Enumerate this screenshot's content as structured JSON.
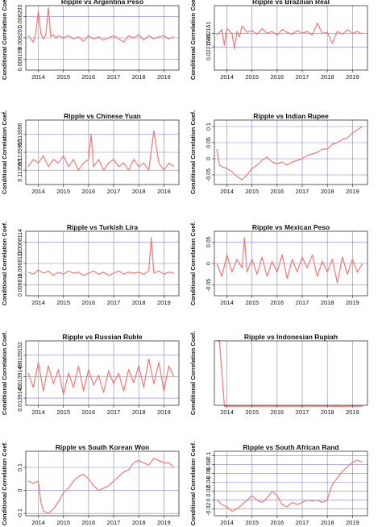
{
  "figure": {
    "ylabel": "Conditional Correlation Coef."
  },
  "chart_data": [
    {
      "type": "line",
      "title": "Ripple vs Argentina Peso",
      "xlabel": "",
      "ylabel": "Conditional Correlation Coef.",
      "xlim": [
        2013.5,
        2019.6
      ],
      "xticks": [
        2014,
        2015,
        2016,
        2017,
        2018,
        2019
      ],
      "ylim": [
        0.008198,
        0.008204
      ],
      "yticks": [
        0.008199,
        0.008201,
        0.008203
      ],
      "grid": true,
      "series": [
        {
          "color": "#F07870",
          "x": [
            2013.6,
            2013.8,
            2013.9,
            2014.0,
            2014.1,
            2014.2,
            2014.3,
            2014.4,
            2014.5,
            2014.6,
            2014.7,
            2014.8,
            2015.0,
            2015.2,
            2015.4,
            2015.6,
            2015.8,
            2016.0,
            2016.2,
            2016.4,
            2016.6,
            2016.8,
            2017.0,
            2017.2,
            2017.4,
            2017.6,
            2017.8,
            2018.0,
            2018.2,
            2018.4,
            2018.6,
            2018.8,
            2019.0,
            2019.2,
            2019.4
          ],
          "y": [
            0.0082012,
            0.0082006,
            0.0082015,
            0.0082035,
            0.0082014,
            0.0082009,
            0.0082013,
            0.0082038,
            0.0082011,
            0.0082013,
            0.008201,
            0.0082012,
            0.008201,
            0.0082012,
            0.0082009,
            0.0082011,
            0.0082007,
            0.0082012,
            0.0082009,
            0.0082011,
            0.0082008,
            0.008201,
            0.0082012,
            0.0082009,
            0.0082006,
            0.0082012,
            0.008201,
            0.0082013,
            0.0082008,
            0.0082012,
            0.0082009,
            0.0082011,
            0.0082012,
            0.0082009,
            0.0082011
          ]
        }
      ]
    },
    {
      "type": "line",
      "title": "Ripple vs Brazilian Real",
      "xlabel": "",
      "ylabel": "Conditional Correlation Coef.",
      "xlim": [
        2013.5,
        2019.6
      ],
      "xticks": [
        2014,
        2015,
        2016,
        2017,
        2018,
        2019
      ],
      "ylim": [
        0.022157,
        0.022164
      ],
      "yticks": [
        0.0221595,
        0.022161
      ],
      "grid": true,
      "series": [
        {
          "color": "#F07870",
          "x": [
            2013.6,
            2013.8,
            2013.9,
            2014.0,
            2014.2,
            2014.3,
            2014.4,
            2014.5,
            2014.6,
            2014.8,
            2015.0,
            2015.2,
            2015.4,
            2015.6,
            2015.8,
            2016.0,
            2016.2,
            2016.4,
            2016.6,
            2016.8,
            2017.0,
            2017.2,
            2017.4,
            2017.6,
            2017.8,
            2018.0,
            2018.2,
            2018.4,
            2018.6,
            2018.8,
            2019.0,
            2019.2,
            2019.4
          ],
          "y": [
            0.0221608,
            0.0221614,
            0.0221597,
            0.0221615,
            0.022161,
            0.0221593,
            0.0221612,
            0.0221606,
            0.0221618,
            0.0221611,
            0.0221613,
            0.0221609,
            0.0221615,
            0.022161,
            0.0221612,
            0.0221608,
            0.0221614,
            0.0221611,
            0.0221609,
            0.0221613,
            0.022161,
            0.0221612,
            0.0221608,
            0.0221621,
            0.022161,
            0.0221611,
            0.0221599,
            0.0221612,
            0.0221609,
            0.0221614,
            0.022161,
            0.0221612,
            0.0221609
          ]
        }
      ]
    },
    {
      "type": "line",
      "title": "Ripple vs Chinese Yuan",
      "xlabel": "",
      "ylabel": "Conditional Correlation Coef.",
      "xlim": [
        2013.5,
        2019.6
      ],
      "xticks": [
        2014,
        2015,
        2016,
        2017,
        2018,
        2019
      ],
      "ylim": [
        0.1135946,
        0.1135964
      ],
      "yticks": [
        0.113595,
        0.1135955,
        0.113596
      ],
      "grid": true,
      "series": [
        {
          "color": "#F07870",
          "x": [
            2013.6,
            2013.8,
            2014.0,
            2014.2,
            2014.4,
            2014.6,
            2014.8,
            2015.0,
            2015.2,
            2015.4,
            2015.6,
            2015.8,
            2016.0,
            2016.1,
            2016.2,
            2016.4,
            2016.6,
            2016.8,
            2017.0,
            2017.2,
            2017.4,
            2017.6,
            2017.8,
            2018.0,
            2018.2,
            2018.4,
            2018.6,
            2018.8,
            2019.0,
            2019.2,
            2019.4
          ],
          "y": [
            0.1135951,
            0.1135953,
            0.1135952,
            0.1135954,
            0.1135951,
            0.1135953,
            0.1135952,
            0.1135954,
            0.1135951,
            0.1135953,
            0.113595,
            0.1135952,
            0.1135953,
            0.113596,
            0.1135951,
            0.1135953,
            0.113595,
            0.1135952,
            0.1135953,
            0.1135951,
            0.1135952,
            0.113595,
            0.1135953,
            0.1135951,
            0.1135952,
            0.113595,
            0.1135961,
            0.1135952,
            0.113595,
            0.1135952,
            0.1135951
          ]
        }
      ]
    },
    {
      "type": "line",
      "title": "Ripple vs Indian Rupee",
      "xlabel": "",
      "ylabel": "Conditional Correlation Coef.",
      "xlim": [
        2013.5,
        2019.6
      ],
      "xticks": [
        2014,
        2015,
        2016,
        2017,
        2018,
        2019
      ],
      "ylim": [
        -0.08,
        0.12
      ],
      "yticks": [
        -0.05,
        0.0,
        0.05,
        0.1
      ],
      "grid": true,
      "series": [
        {
          "color": "#F07870",
          "x": [
            2013.6,
            2013.7,
            2013.8,
            2014.0,
            2014.2,
            2014.4,
            2014.6,
            2014.8,
            2015.0,
            2015.2,
            2015.4,
            2015.6,
            2015.8,
            2016.0,
            2016.2,
            2016.4,
            2016.6,
            2016.8,
            2017.0,
            2017.2,
            2017.4,
            2017.6,
            2017.8,
            2018.0,
            2018.2,
            2018.4,
            2018.6,
            2018.8,
            2019.0,
            2019.2,
            2019.4
          ],
          "y": [
            0.03,
            -0.02,
            -0.025,
            -0.03,
            -0.04,
            -0.055,
            -0.065,
            -0.05,
            -0.03,
            -0.02,
            -0.005,
            0.005,
            -0.01,
            -0.015,
            -0.01,
            -0.02,
            -0.01,
            -0.005,
            0.0,
            0.01,
            0.015,
            0.02,
            0.03,
            0.03,
            0.045,
            0.05,
            0.06,
            0.065,
            0.08,
            0.09,
            0.1
          ]
        }
      ]
    },
    {
      "type": "line",
      "title": "Ripple vs Turkish Lira",
      "xlabel": "",
      "ylabel": "Conditional Correlation Coef.",
      "xlim": [
        2013.5,
        2019.6
      ],
      "xticks": [
        2014,
        2015,
        2016,
        2017,
        2018,
        2019
      ],
      "ylim": [
        0.0068109,
        0.0068115
      ],
      "yticks": [
        0.006811,
        0.0068112,
        0.0068114
      ],
      "grid": true,
      "series": [
        {
          "color": "#F07870",
          "x": [
            2013.6,
            2013.8,
            2014.0,
            2014.2,
            2014.4,
            2014.6,
            2014.8,
            2015.0,
            2015.2,
            2015.4,
            2015.6,
            2015.8,
            2016.0,
            2016.2,
            2016.4,
            2016.6,
            2016.8,
            2017.0,
            2017.2,
            2017.4,
            2017.6,
            2017.8,
            2018.0,
            2018.2,
            2018.4,
            2018.5,
            2018.6,
            2018.8,
            2019.0,
            2019.2,
            2019.4
          ],
          "y": [
            0.00681112,
            0.0068111,
            0.00681114,
            0.00681111,
            0.00681113,
            0.00681109,
            0.00681112,
            0.0068111,
            0.00681113,
            0.00681111,
            0.00681112,
            0.00681109,
            0.00681111,
            0.00681113,
            0.0068111,
            0.00681112,
            0.00681109,
            0.00681111,
            0.00681113,
            0.0068111,
            0.00681112,
            0.00681111,
            0.00681112,
            0.0068111,
            0.00681113,
            0.00681144,
            0.00681111,
            0.00681113,
            0.0068111,
            0.00681112,
            0.00681111
          ]
        }
      ]
    },
    {
      "type": "line",
      "title": "Ripple vs Mexican Peso",
      "xlabel": "",
      "ylabel": "Conditional Correlation Coef.",
      "xlim": [
        2013.5,
        2019.6
      ],
      "xticks": [
        2014,
        2015,
        2016,
        2017,
        2018,
        2019
      ],
      "ylim": [
        -0.075,
        0.075
      ],
      "yticks": [
        -0.05,
        0.0,
        0.05
      ],
      "grid": true,
      "series": [
        {
          "color": "#F07870",
          "x": [
            2013.6,
            2013.8,
            2014.0,
            2014.2,
            2014.4,
            2014.6,
            2014.7,
            2014.8,
            2015.0,
            2015.2,
            2015.4,
            2015.6,
            2015.8,
            2016.0,
            2016.2,
            2016.4,
            2016.6,
            2016.8,
            2017.0,
            2017.2,
            2017.4,
            2017.6,
            2017.8,
            2018.0,
            2018.2,
            2018.4,
            2018.6,
            2018.8,
            2019.0,
            2019.2,
            2019.4
          ],
          "y": [
            0.0,
            -0.03,
            0.02,
            -0.02,
            0.01,
            -0.01,
            0.06,
            -0.02,
            0.01,
            -0.025,
            0.015,
            -0.03,
            0.005,
            -0.02,
            0.02,
            -0.035,
            0.01,
            -0.02,
            0.015,
            -0.01,
            0.02,
            -0.03,
            0.005,
            -0.02,
            0.01,
            -0.045,
            0.015,
            -0.025,
            0.01,
            -0.02,
            0.0
          ]
        }
      ]
    },
    {
      "type": "line",
      "title": "Ripple vs Russian Ruble",
      "xlabel": "",
      "ylabel": "Conditional Correlation Coef.",
      "xlim": [
        2013.5,
        2019.6
      ],
      "xticks": [
        2014,
        2015,
        2016,
        2017,
        2018,
        2019
      ],
      "ylim": [
        0.0139145,
        0.0139154
      ],
      "yticks": [
        0.0139146,
        0.0139149,
        0.0139152
      ],
      "grid": true,
      "series": [
        {
          "color": "#F07870",
          "x": [
            2013.6,
            2013.8,
            2014.0,
            2014.2,
            2014.4,
            2014.6,
            2014.8,
            2015.0,
            2015.2,
            2015.4,
            2015.6,
            2015.8,
            2016.0,
            2016.2,
            2016.4,
            2016.6,
            2016.8,
            2017.0,
            2017.2,
            2017.4,
            2017.6,
            2017.8,
            2018.0,
            2018.2,
            2018.4,
            2018.6,
            2018.8,
            2019.0,
            2019.2,
            2019.4
          ],
          "y": [
            0.01391495,
            0.01391475,
            0.0139151,
            0.0139147,
            0.01391505,
            0.0139148,
            0.013915,
            0.01391465,
            0.01391495,
            0.01391475,
            0.01391505,
            0.0139147,
            0.013915,
            0.01391478,
            0.01391492,
            0.01391468,
            0.01391498,
            0.0139148,
            0.01391495,
            0.0139147,
            0.013915,
            0.01391482,
            0.01391505,
            0.01391475,
            0.01391515,
            0.0139148,
            0.0139151,
            0.0139147,
            0.01391505,
            0.0139149
          ]
        }
      ]
    },
    {
      "type": "line",
      "title": "Ripple vs Indonesian Rupiah",
      "xlabel": "",
      "ylabel": "Conditional Correlation Coef.",
      "xlim": [
        2013.5,
        2019.6
      ],
      "xticks": [
        2014,
        2015,
        2016,
        2017,
        2018,
        2019
      ],
      "ylim": [
        0.0417955,
        0.0417605
      ],
      "yticks": [
        0.0417957,
        0.0417597,
        0.04176
      ],
      "grid": true,
      "series": [
        {
          "color": "#F07870",
          "x": [
            2013.6,
            2013.7,
            2013.9,
            2014.0,
            2014.2,
            2014.4,
            2014.6,
            2014.8,
            2015.0,
            2015.2,
            2015.4,
            2015.6,
            2015.8,
            2016.0,
            2016.2,
            2016.4,
            2016.6,
            2016.8,
            2017.0,
            2017.2,
            2017.4,
            2017.6,
            2017.8,
            2018.0,
            2018.2,
            2018.4,
            2018.6,
            2018.8,
            2019.0,
            2019.2,
            2019.4
          ],
          "y": [
            0.0417956,
            0.0417958,
            0.04175995,
            0.04176005,
            0.04175998,
            0.04176003,
            0.04175997,
            0.04176002,
            0.04175999,
            0.04176004,
            0.04175996,
            0.04176001,
            0.04175998,
            0.04176003,
            0.04175997,
            0.04176,
            0.04175998,
            0.04176002,
            0.04175999,
            0.04176005,
            0.04175997,
            0.04176001,
            0.04175996,
            0.04176003,
            0.04175995,
            0.04176,
            0.04175985,
            0.04176002,
            0.04175998,
            0.04176001,
            0.04175999
          ]
        }
      ]
    },
    {
      "type": "line",
      "title": "Ripple vs South Korean Won",
      "xlabel": "",
      "ylabel": "Conditional Correlation Coef.",
      "xlim": [
        2013.5,
        2019.6
      ],
      "xticks": [
        2014,
        2015,
        2016,
        2017,
        2018,
        2019
      ],
      "ylim": [
        -0.11,
        0.17
      ],
      "yticks": [
        -0.1,
        0.0,
        0.1
      ],
      "grid": true,
      "series": [
        {
          "color": "#F07870",
          "x": [
            2013.6,
            2013.8,
            2014.0,
            2014.1,
            2014.2,
            2014.4,
            2014.6,
            2014.8,
            2015.0,
            2015.2,
            2015.4,
            2015.6,
            2015.8,
            2016.0,
            2016.2,
            2016.4,
            2016.6,
            2016.8,
            2017.0,
            2017.2,
            2017.4,
            2017.6,
            2017.8,
            2018.0,
            2018.2,
            2018.4,
            2018.6,
            2018.8,
            2019.0,
            2019.2,
            2019.4
          ],
          "y": [
            0.04,
            0.03,
            0.04,
            -0.05,
            -0.09,
            -0.1,
            -0.08,
            -0.05,
            -0.01,
            0.01,
            0.04,
            0.06,
            0.07,
            0.05,
            0.02,
            0.0,
            0.01,
            0.02,
            0.04,
            0.06,
            0.08,
            0.09,
            0.12,
            0.13,
            0.12,
            0.11,
            0.14,
            0.13,
            0.12,
            0.12,
            0.1
          ]
        }
      ]
    },
    {
      "type": "line",
      "title": "Ripple vs South African Rand",
      "xlabel": "",
      "ylabel": "Conditional Correlation Coef.",
      "xlim": [
        2013.5,
        2019.6
      ],
      "xticks": [
        2014,
        2015,
        2016,
        2017,
        2018,
        2019
      ],
      "ylim": [
        -0.035,
        0.11
      ],
      "yticks": [
        -0.02,
        0.0,
        0.02,
        0.04,
        0.06,
        0.08,
        0.1
      ],
      "grid": true,
      "series": [
        {
          "color": "#F07870",
          "x": [
            2013.6,
            2013.8,
            2014.0,
            2014.2,
            2014.4,
            2014.6,
            2014.8,
            2015.0,
            2015.2,
            2015.4,
            2015.6,
            2015.8,
            2016.0,
            2016.2,
            2016.4,
            2016.6,
            2016.8,
            2017.0,
            2017.2,
            2017.4,
            2017.6,
            2017.8,
            2018.0,
            2018.1,
            2018.2,
            2018.4,
            2018.6,
            2018.8,
            2019.0,
            2019.2,
            2019.4
          ],
          "y": [
            0.0,
            -0.01,
            -0.015,
            -0.025,
            -0.02,
            -0.01,
            0.0,
            0.01,
            0.0,
            -0.005,
            0.005,
            0.02,
            0.01,
            -0.01,
            -0.015,
            -0.005,
            -0.01,
            -0.005,
            0.0,
            -0.002,
            0.0,
            -0.005,
            0.0,
            0.02,
            0.035,
            0.05,
            0.065,
            0.075,
            0.085,
            0.09,
            0.085
          ]
        }
      ]
    }
  ]
}
